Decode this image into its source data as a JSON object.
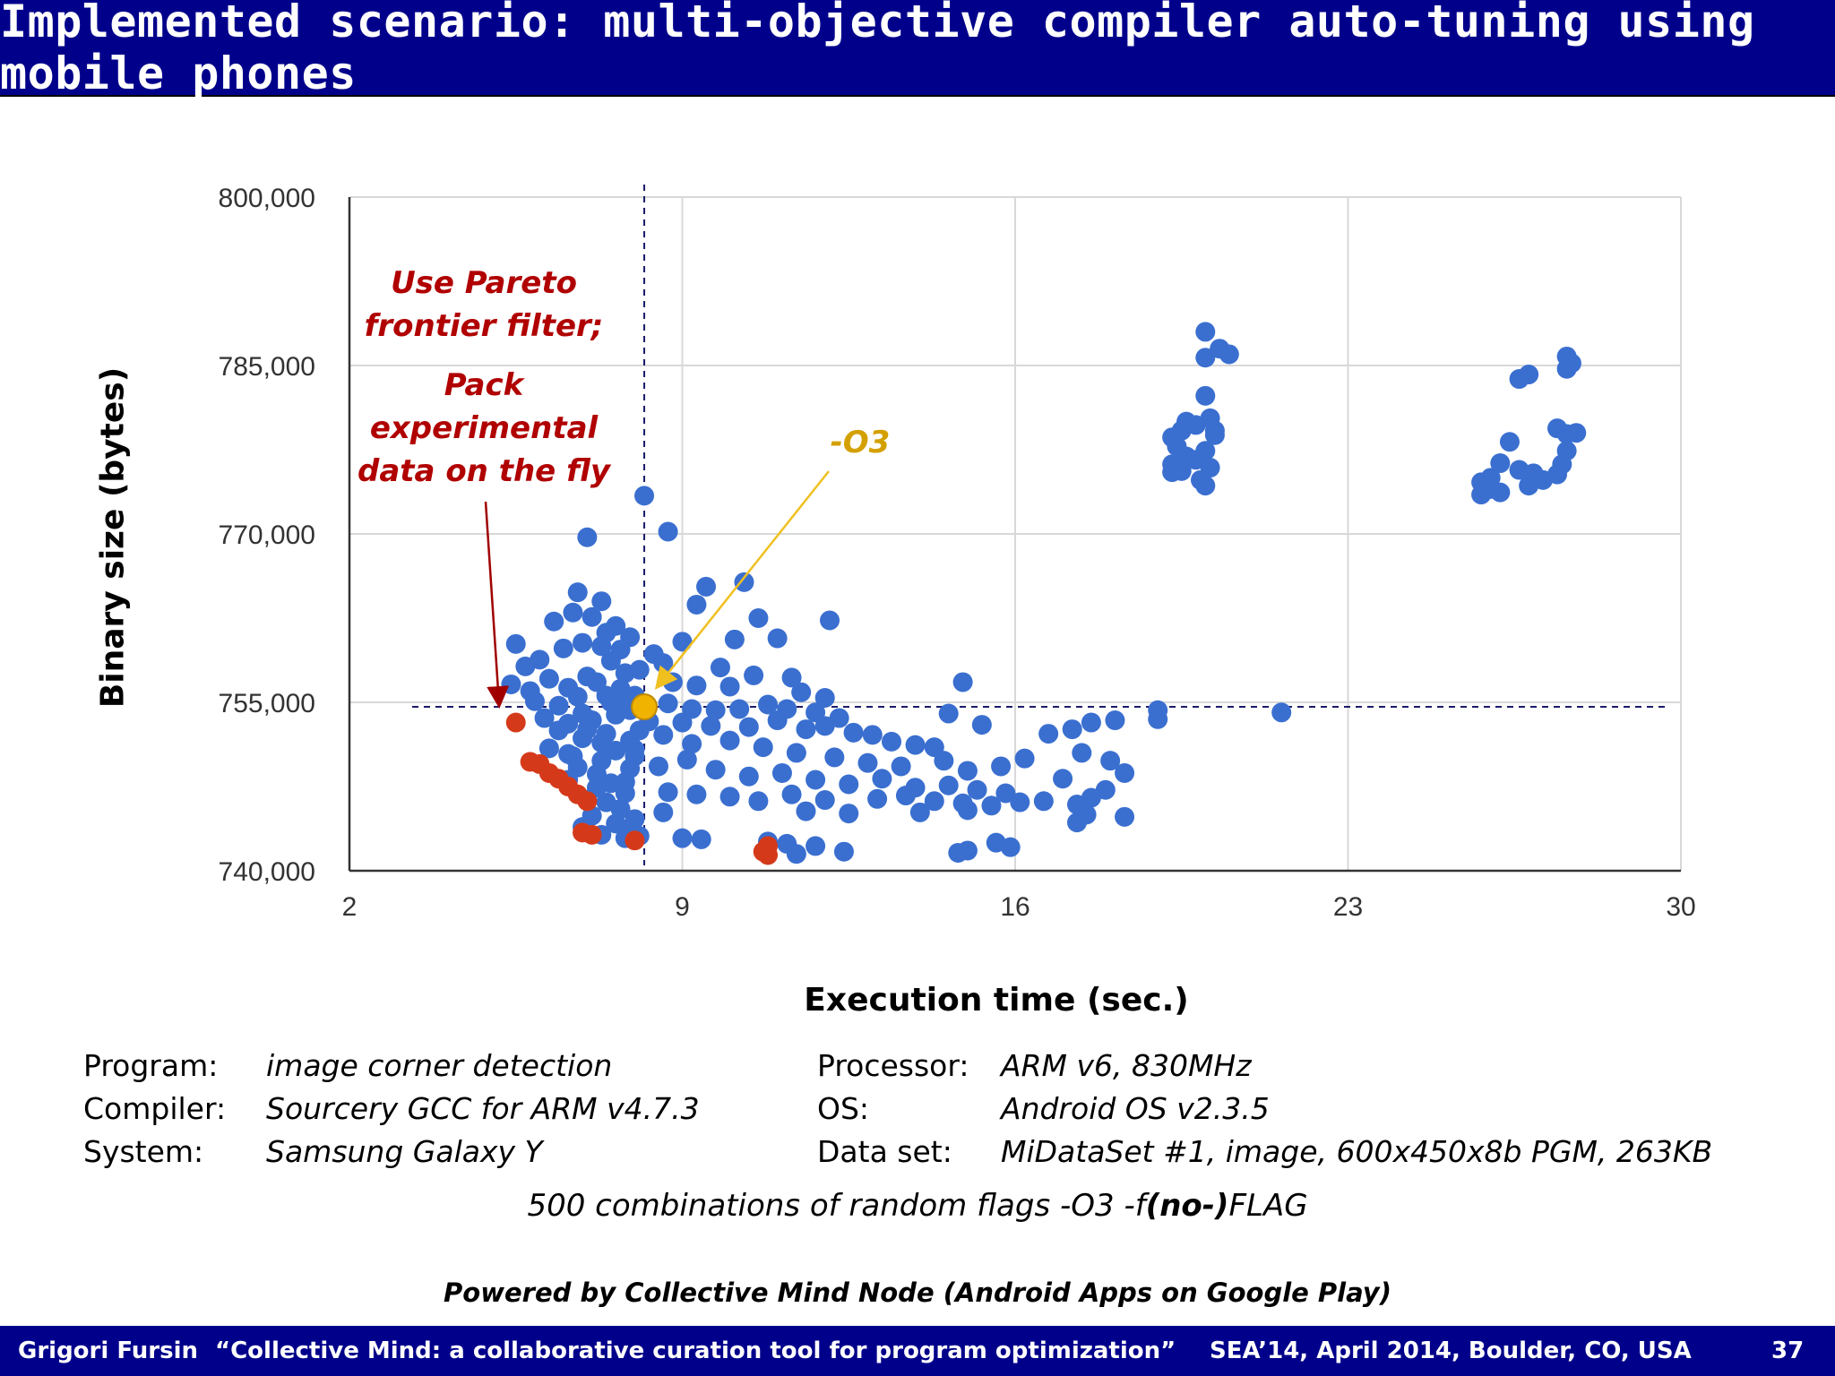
{
  "slide": {
    "title": "Implemented scenario: multi-objective compiler auto-tuning using mobile phones",
    "footer_author": "Grigori Fursin",
    "footer_talk": "“Collective Mind: a collaborative curation tool for program optimization”",
    "footer_venue": "SEA’14, April 2014, Boulder, CO, USA",
    "footer_page": "37"
  },
  "annotations": {
    "pareto": [
      "Use Pareto",
      "frontier filter;"
    ],
    "pack": [
      "Pack",
      "experimental",
      "data on the fly"
    ],
    "o3": "-O3"
  },
  "info": {
    "program_label": "Program:",
    "program_value": "image corner detection",
    "compiler_label": "Compiler:",
    "compiler_value": "Sourcery GCC for ARM v4.7.3",
    "system_label": "System:",
    "system_value": "Samsung Galaxy Y",
    "processor_label": "Processor:",
    "processor_value": "ARM v6, 830MHz",
    "os_label": "OS:",
    "os_value": "Android OS v2.3.5",
    "dataset_label": "Data set:",
    "dataset_value": "MiDataSet #1, image, 600x450x8b PGM, 263KB",
    "flags_prefix": "500 combinations of random flags -O3 -f",
    "flags_bold": "(no-)",
    "flags_suffix": "FLAG",
    "powered": "Powered by Collective Mind Node (Android Apps on Google Play)"
  },
  "colors": {
    "header_bg": "#00008b",
    "blue_points": "#3a6fd0",
    "pareto_points": "#d43a1a",
    "o3_point": "#f0b400",
    "annotation_red": "#b00000",
    "annotation_gold": "#d4a000",
    "arrow_red": "#a00000",
    "arrow_gold": "#f0c020",
    "guide_line": "#1a1a6a"
  },
  "chart_data": {
    "type": "scatter",
    "xlabel": "Execution time (sec.)",
    "ylabel": "Binary size (bytes)",
    "xlim": [
      2,
      30
    ],
    "ylim": [
      740000,
      800000
    ],
    "x_ticks": [
      2,
      9,
      16,
      23,
      30
    ],
    "y_ticks": [
      740000,
      755000,
      770000,
      785000,
      800000
    ],
    "x_tick_labels": [
      "2",
      "9",
      "16",
      "23",
      "30"
    ],
    "y_tick_labels": [
      "740,000",
      "755,000",
      "770,000",
      "785,000",
      "800,000"
    ],
    "grid": true,
    "reference_point": {
      "name": "-O3",
      "x": 8.2,
      "y": 754600
    },
    "series": [
      {
        "role": "experiments",
        "points": [
          [
            8.2,
            773400
          ],
          [
            7.0,
            769700
          ],
          [
            8.7,
            770200
          ],
          [
            9.5,
            765300
          ],
          [
            6.8,
            764800
          ],
          [
            9.3,
            763700
          ],
          [
            10.3,
            765700
          ],
          [
            6.7,
            763000
          ],
          [
            7.3,
            764000
          ],
          [
            6.3,
            762200
          ],
          [
            7.6,
            761800
          ],
          [
            7.1,
            762600
          ],
          [
            7.9,
            760800
          ],
          [
            8.4,
            759300
          ],
          [
            9.0,
            760400
          ],
          [
            6.0,
            758800
          ],
          [
            5.7,
            758200
          ],
          [
            6.5,
            759800
          ],
          [
            6.9,
            760300
          ],
          [
            7.4,
            761200
          ],
          [
            7.7,
            759700
          ],
          [
            10.1,
            760600
          ],
          [
            10.6,
            762500
          ],
          [
            11.0,
            760700
          ],
          [
            12.1,
            762300
          ],
          [
            5.5,
            760200
          ],
          [
            9.8,
            758100
          ],
          [
            10.5,
            757400
          ],
          [
            11.3,
            757200
          ],
          [
            8.6,
            758500
          ],
          [
            5.4,
            756600
          ],
          [
            5.8,
            756000
          ],
          [
            6.2,
            757100
          ],
          [
            6.6,
            756300
          ],
          [
            7.2,
            756800
          ],
          [
            7.8,
            757600
          ],
          [
            8.8,
            756800
          ],
          [
            9.3,
            756500
          ],
          [
            10.0,
            756400
          ],
          [
            11.5,
            755900
          ],
          [
            12.0,
            755400
          ],
          [
            14.9,
            756800
          ],
          [
            5.9,
            755100
          ],
          [
            6.4,
            754700
          ],
          [
            6.8,
            755500
          ],
          [
            7.5,
            755000
          ],
          [
            8.0,
            755600
          ],
          [
            8.7,
            754900
          ],
          [
            9.2,
            754400
          ],
          [
            9.7,
            754300
          ],
          [
            10.2,
            754400
          ],
          [
            10.8,
            754800
          ],
          [
            11.2,
            754400
          ],
          [
            11.8,
            754100
          ],
          [
            12.3,
            753600
          ],
          [
            14.6,
            754000
          ],
          [
            15.3,
            753000
          ],
          [
            6.1,
            753600
          ],
          [
            6.6,
            753100
          ],
          [
            7.1,
            753400
          ],
          [
            7.6,
            753900
          ],
          [
            8.3,
            753300
          ],
          [
            9.0,
            753200
          ],
          [
            9.6,
            752900
          ],
          [
            10.4,
            752800
          ],
          [
            11.0,
            753400
          ],
          [
            11.6,
            752600
          ],
          [
            12.0,
            752900
          ],
          [
            12.6,
            752300
          ],
          [
            13.0,
            752100
          ],
          [
            13.4,
            751500
          ],
          [
            13.9,
            751200
          ],
          [
            14.3,
            751000
          ],
          [
            6.4,
            752500
          ],
          [
            6.9,
            751800
          ],
          [
            7.4,
            752200
          ],
          [
            7.9,
            751600
          ],
          [
            8.6,
            752100
          ],
          [
            9.2,
            751300
          ],
          [
            10.0,
            751600
          ],
          [
            10.7,
            751000
          ],
          [
            11.4,
            750500
          ],
          [
            12.2,
            750100
          ],
          [
            12.9,
            749600
          ],
          [
            13.6,
            749300
          ],
          [
            14.5,
            749800
          ],
          [
            15.0,
            748900
          ],
          [
            15.7,
            749300
          ],
          [
            16.2,
            750000
          ],
          [
            16.7,
            752200
          ],
          [
            17.2,
            752600
          ],
          [
            17.6,
            753200
          ],
          [
            18.1,
            753400
          ],
          [
            19.0,
            754300
          ],
          [
            19.0,
            753500
          ],
          [
            21.6,
            754100
          ],
          [
            17.4,
            750500
          ],
          [
            18.0,
            749800
          ],
          [
            17.0,
            748200
          ],
          [
            18.3,
            748700
          ],
          [
            6.2,
            750900
          ],
          [
            6.7,
            750200
          ],
          [
            7.3,
            749800
          ],
          [
            8.0,
            750200
          ],
          [
            8.5,
            749300
          ],
          [
            9.1,
            749900
          ],
          [
            9.7,
            749000
          ],
          [
            10.4,
            748400
          ],
          [
            11.1,
            748700
          ],
          [
            11.8,
            748100
          ],
          [
            12.5,
            747700
          ],
          [
            13.2,
            748200
          ],
          [
            13.9,
            747400
          ],
          [
            14.6,
            747600
          ],
          [
            15.2,
            747200
          ],
          [
            15.8,
            746900
          ],
          [
            6.6,
            748100
          ],
          [
            7.2,
            747400
          ],
          [
            7.8,
            747900
          ],
          [
            8.7,
            747000
          ],
          [
            9.3,
            746800
          ],
          [
            10.0,
            746600
          ],
          [
            10.6,
            746200
          ],
          [
            11.3,
            746800
          ],
          [
            12.0,
            746300
          ],
          [
            13.1,
            746400
          ],
          [
            13.7,
            746700
          ],
          [
            14.3,
            746200
          ],
          [
            14.9,
            746000
          ],
          [
            15.5,
            745800
          ],
          [
            16.1,
            746100
          ],
          [
            17.3,
            745900
          ],
          [
            17.6,
            746500
          ],
          [
            17.9,
            747200
          ],
          [
            8.6,
            745200
          ],
          [
            11.6,
            745300
          ],
          [
            12.5,
            745100
          ],
          [
            14.0,
            745200
          ],
          [
            15.0,
            745400
          ],
          [
            16.6,
            746200
          ],
          [
            17.5,
            745000
          ],
          [
            18.3,
            744800
          ],
          [
            17.3,
            744300
          ],
          [
            9.0,
            742900
          ],
          [
            9.4,
            742800
          ],
          [
            10.8,
            742600
          ],
          [
            11.2,
            742400
          ],
          [
            11.8,
            742200
          ],
          [
            12.4,
            741700
          ],
          [
            14.8,
            741600
          ],
          [
            15.0,
            741800
          ],
          [
            15.6,
            742500
          ],
          [
            15.9,
            742100
          ],
          [
            11.4,
            741500
          ],
          [
            7.0,
            752600
          ],
          [
            7.3,
            751400
          ],
          [
            7.6,
            750700
          ],
          [
            7.9,
            749100
          ],
          [
            7.2,
            748600
          ],
          [
            7.5,
            747800
          ],
          [
            7.8,
            746900
          ],
          [
            7.4,
            746100
          ],
          [
            7.7,
            745500
          ],
          [
            7.1,
            744900
          ],
          [
            7.6,
            744200
          ],
          [
            8.0,
            744600
          ],
          [
            7.9,
            743800
          ],
          [
            6.9,
            743900
          ],
          [
            7.3,
            743200
          ],
          [
            7.8,
            742900
          ],
          [
            8.1,
            743100
          ],
          [
            7.0,
            746300
          ],
          [
            6.8,
            749200
          ],
          [
            6.6,
            750400
          ],
          [
            6.9,
            754000
          ],
          [
            7.4,
            755600
          ],
          [
            7.9,
            754300
          ],
          [
            8.1,
            752500
          ],
          [
            8.0,
            750800
          ],
          [
            7.7,
            756200
          ],
          [
            7.0,
            757300
          ],
          [
            7.5,
            758700
          ],
          [
            8.1,
            757900
          ],
          [
            7.3,
            760000
          ],
          [
            7.8,
            755100
          ],
          [
            20.0,
            788000
          ],
          [
            20.0,
            785700
          ],
          [
            20.3,
            786500
          ],
          [
            20.5,
            786000
          ],
          [
            20.0,
            782300
          ],
          [
            20.1,
            780300
          ],
          [
            19.8,
            779700
          ],
          [
            19.5,
            779200
          ],
          [
            19.3,
            778600
          ],
          [
            19.4,
            777800
          ],
          [
            19.6,
            776900
          ],
          [
            19.3,
            776200
          ],
          [
            19.5,
            775600
          ],
          [
            19.8,
            776600
          ],
          [
            20.0,
            777400
          ],
          [
            20.2,
            778800
          ],
          [
            19.9,
            774800
          ],
          [
            19.3,
            775500
          ],
          [
            20.1,
            775900
          ],
          [
            20.0,
            774300
          ],
          [
            19.6,
            780000
          ],
          [
            20.2,
            779200
          ],
          [
            27.6,
            785800
          ],
          [
            27.7,
            785200
          ],
          [
            27.6,
            784700
          ],
          [
            26.6,
            783800
          ],
          [
            26.8,
            784200
          ],
          [
            26.4,
            778200
          ],
          [
            27.4,
            779400
          ],
          [
            27.6,
            778900
          ],
          [
            27.8,
            779000
          ],
          [
            27.6,
            777400
          ],
          [
            26.2,
            776300
          ],
          [
            26.6,
            775700
          ],
          [
            26.9,
            775400
          ],
          [
            27.1,
            774800
          ],
          [
            27.4,
            775300
          ],
          [
            26.0,
            775000
          ],
          [
            25.8,
            774600
          ],
          [
            26.0,
            774000
          ],
          [
            25.8,
            773500
          ],
          [
            26.2,
            773700
          ],
          [
            26.8,
            774300
          ],
          [
            27.5,
            776200
          ]
        ]
      },
      {
        "role": "pareto-frontier",
        "points": [
          [
            5.5,
            753200
          ],
          [
            5.8,
            749700
          ],
          [
            6.0,
            749500
          ],
          [
            6.2,
            748700
          ],
          [
            6.4,
            748200
          ],
          [
            6.6,
            747500
          ],
          [
            6.8,
            746800
          ],
          [
            7.0,
            746200
          ],
          [
            6.9,
            743400
          ],
          [
            7.1,
            743200
          ],
          [
            8.0,
            742700
          ],
          [
            10.8,
            742200
          ],
          [
            10.8,
            741400
          ],
          [
            10.7,
            741700
          ]
        ]
      }
    ]
  }
}
